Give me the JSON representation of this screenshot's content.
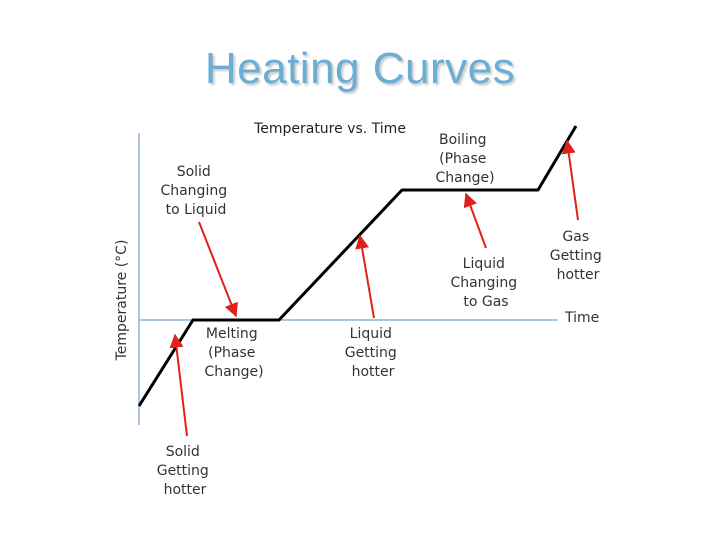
{
  "title": "Heating Curves",
  "chart_title": "Temperature vs. Time",
  "axes": {
    "ylabel": "Temperature (°C)",
    "xlabel": "Time"
  },
  "colors": {
    "title": "#6aaed6",
    "axis": "#8fb4d4",
    "curve": "#000000",
    "arrow": "#e0211a"
  },
  "annotations": {
    "solid_changing": [
      "Solid",
      "Changing",
      "to Liquid"
    ],
    "melting": [
      "Melting",
      "(Phase",
      "Change)"
    ],
    "liquid_hotter": [
      "Liquid",
      "Getting",
      "hotter"
    ],
    "boiling": [
      "Boiling",
      "(Phase",
      "Change)"
    ],
    "liquid_to_gas": [
      "Liquid",
      "Changing",
      "to Gas"
    ],
    "gas_hotter": [
      "Gas",
      "Getting",
      "hotter"
    ],
    "solid_hotter": [
      "Solid",
      "Getting",
      "hotter"
    ]
  }
}
